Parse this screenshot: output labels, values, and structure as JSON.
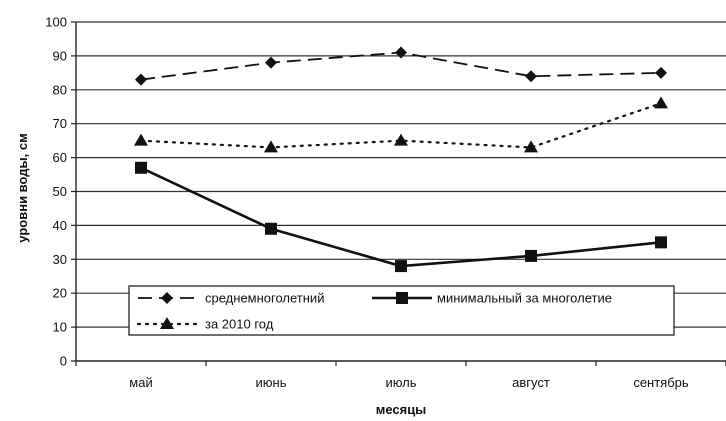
{
  "chart_data": {
    "type": "line",
    "title": "",
    "xlabel": "месяцы",
    "ylabel": "уровни воды, см",
    "categories": [
      "май",
      "июнь",
      "июль",
      "август",
      "сентябрь"
    ],
    "ylim": [
      0,
      100
    ],
    "yticks": [
      0,
      10,
      20,
      30,
      40,
      50,
      60,
      70,
      80,
      90,
      100
    ],
    "grid": "horizontal",
    "legend_position": "bottom-center",
    "series": [
      {
        "name": "среднемноголетний",
        "values": [
          83,
          88,
          91,
          84,
          85
        ],
        "line_style": "dashed",
        "marker": "diamond",
        "color": "#111111"
      },
      {
        "name": "минимальный за многолетие",
        "values": [
          57,
          39,
          28,
          31,
          35
        ],
        "line_style": "solid",
        "marker": "square",
        "color": "#111111"
      },
      {
        "name": "за 2010 год",
        "values": [
          65,
          63,
          65,
          63,
          76
        ],
        "line_style": "dotted",
        "marker": "triangle",
        "color": "#111111"
      }
    ]
  }
}
